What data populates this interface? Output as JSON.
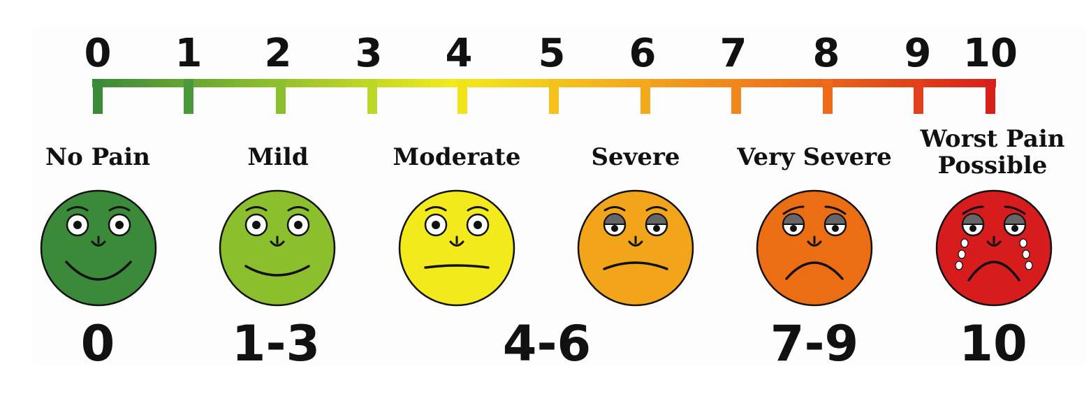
{
  "scale": {
    "ticks": [
      "0",
      "1",
      "2",
      "3",
      "4",
      "5",
      "6",
      "7",
      "8",
      "9",
      "10"
    ],
    "gradient_colors": [
      "#3a8a3a",
      "#8fbf2e",
      "#f2ec1a",
      "#f4a81c",
      "#ec6a1a",
      "#d8201a"
    ]
  },
  "categories": [
    {
      "label": "No Pain",
      "face": "happy",
      "color": "#3a8a3a"
    },
    {
      "label": "Mild",
      "face": "smile",
      "color": "#8cbf2e"
    },
    {
      "label": "Moderate",
      "face": "neutral",
      "color": "#f2ea1c"
    },
    {
      "label": "Severe",
      "face": "frown",
      "color": "#f2a51a"
    },
    {
      "label": "Very Severe",
      "face": "sad",
      "color": "#ec6e14"
    },
    {
      "label": "Worst Pain\nPossible",
      "face": "crying",
      "color": "#d61c1c"
    }
  ],
  "ranges": [
    "0",
    "1-3",
    "4-6",
    "7-9",
    "10"
  ]
}
